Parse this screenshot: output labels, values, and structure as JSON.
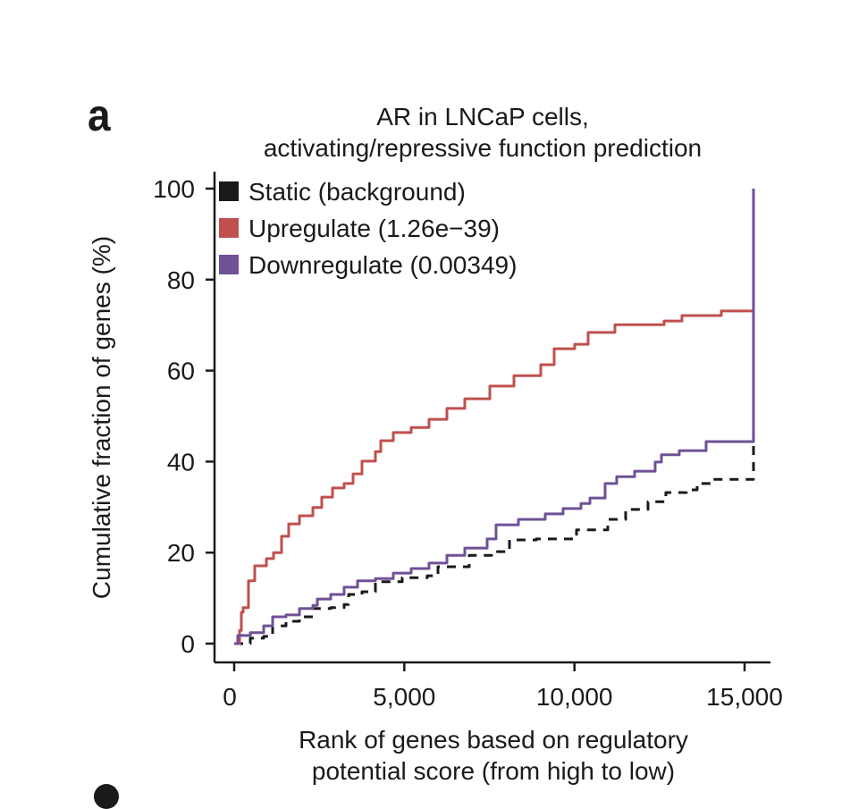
{
  "panel_label": "a",
  "chart_data": {
    "type": "line",
    "title": [
      "AR in LNCaP cells,",
      "activating/repressive function prediction"
    ],
    "xlabel": [
      "Rank of genes based on regulatory",
      "potential score (from high to low)"
    ],
    "ylabel": "Cumulative fraction of genes (%)",
    "xlim": [
      0,
      15500
    ],
    "ylim": [
      0,
      100
    ],
    "xticks": [
      0,
      5000,
      10000,
      15000
    ],
    "xtick_labels": [
      "0",
      "5,000",
      "10,000",
      "15,000"
    ],
    "yticks": [
      0,
      20,
      40,
      60,
      80,
      100
    ],
    "ytick_labels": [
      "0",
      "20",
      "40",
      "60",
      "80",
      "100"
    ],
    "grid": false,
    "legend_position": "top-left",
    "series": [
      {
        "name": "Static (background)",
        "color": "#1a1a1a",
        "style": "dashed",
        "x": [
          0,
          473,
          867,
          1130,
          1523,
          1918,
          2312,
          2837,
          3231,
          3363,
          3756,
          4150,
          4938,
          5674,
          5989,
          6908,
          7565,
          8090,
          8878,
          10061,
          10980,
          11505,
          12162,
          12687,
          13291,
          13606,
          14000,
          15262,
          15262
        ],
        "y": [
          0,
          1.2,
          1.6,
          3.9,
          4.9,
          5.9,
          7.7,
          7.9,
          8.6,
          10.8,
          11.4,
          13.6,
          14.5,
          14.9,
          16.9,
          19.4,
          20.2,
          22.8,
          23.0,
          25.0,
          27.3,
          29.5,
          31.2,
          33.2,
          33.8,
          35.2,
          36.1,
          37.7,
          46.0
        ]
      },
      {
        "name": "Upregulate (1.26e−39)",
        "color": "#c0504d",
        "style": "solid",
        "x": [
          0,
          158,
          210,
          263,
          420,
          604,
          946,
          1156,
          1392,
          1602,
          1918,
          2312,
          2574,
          2890,
          3231,
          3494,
          3756,
          4150,
          4308,
          4676,
          5201,
          5726,
          6252,
          6777,
          7513,
          8222,
          9010,
          9404,
          10008,
          10402,
          11190,
          12635,
          13160,
          14316,
          15262,
          15262
        ],
        "y": [
          0,
          2.9,
          6.9,
          7.9,
          13.8,
          17.1,
          18.7,
          20.0,
          23.6,
          26.3,
          28.1,
          29.9,
          32.2,
          34.2,
          35.2,
          37.3,
          40.1,
          42.2,
          44.6,
          46.4,
          47.5,
          49.3,
          51.7,
          53.8,
          56.6,
          58.9,
          61.3,
          64.8,
          65.8,
          68.4,
          70.1,
          70.9,
          72.1,
          73.1,
          73.5,
          100
        ]
      },
      {
        "name": "Downregulate (0.00349)",
        "color": "#6f5196",
        "style": "solid",
        "x": [
          0,
          105,
          473,
          867,
          1130,
          1523,
          1918,
          2312,
          2443,
          2837,
          3231,
          3625,
          4150,
          4676,
          5201,
          5726,
          6252,
          6777,
          7434,
          7696,
          8353,
          9141,
          9666,
          10192,
          10455,
          10901,
          11242,
          11768,
          12372,
          12556,
          13081,
          13869,
          15262,
          15262
        ],
        "y": [
          0,
          1.8,
          2.4,
          3.9,
          5.9,
          6.3,
          7.7,
          8.4,
          9.8,
          10.8,
          12.4,
          13.8,
          14.3,
          15.5,
          16.5,
          17.7,
          19.4,
          21.0,
          23.0,
          26.1,
          27.3,
          28.5,
          29.7,
          30.8,
          32.0,
          35.2,
          36.7,
          37.9,
          39.9,
          41.5,
          42.4,
          44.4,
          46.0,
          100
        ]
      }
    ]
  }
}
